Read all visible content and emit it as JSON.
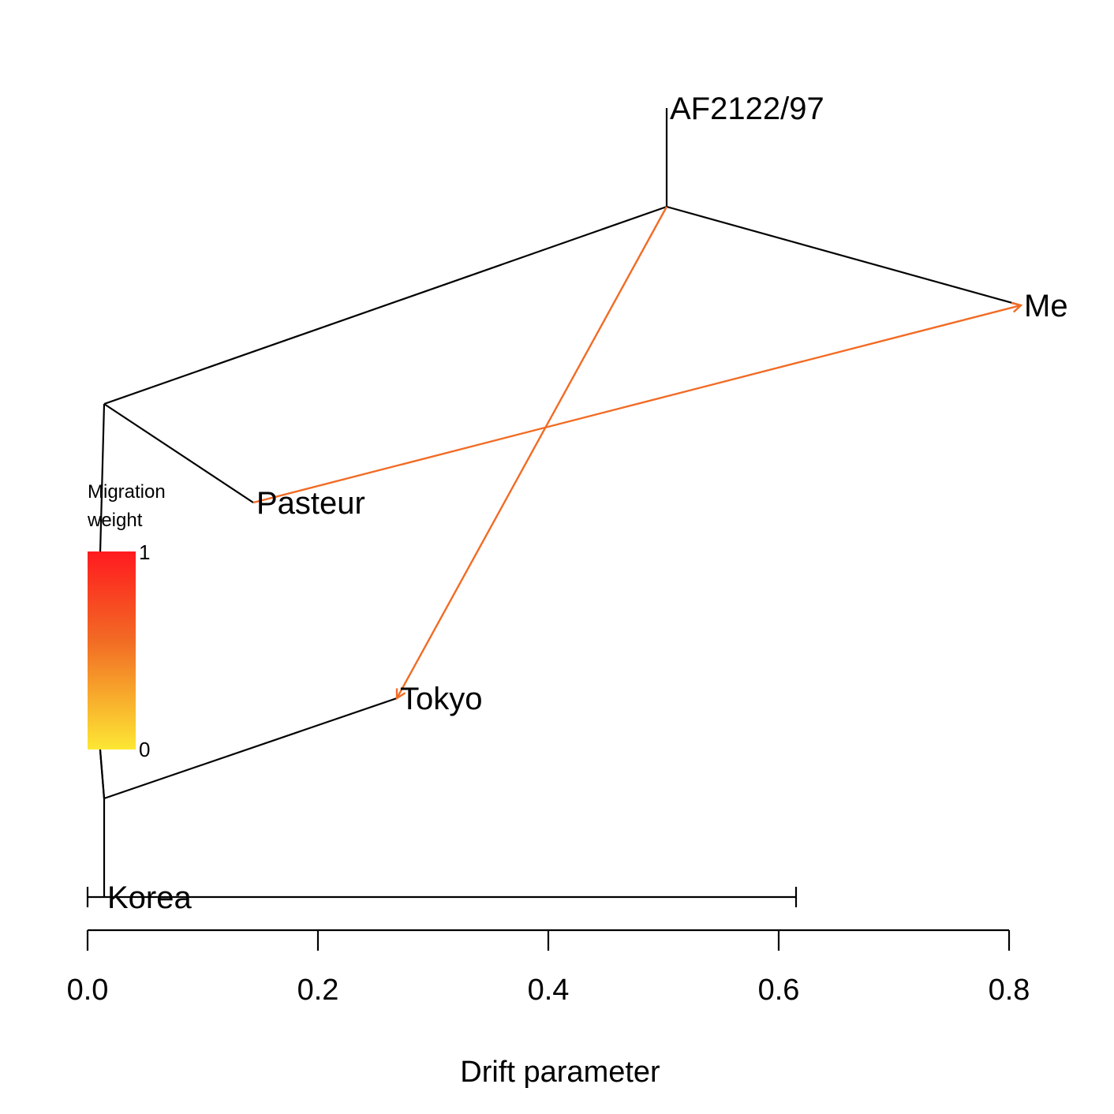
{
  "chart_data": {
    "type": "tree",
    "xlabel": "Drift parameter",
    "xlim": [
      0.0,
      0.8
    ],
    "x_ticks": [
      "0.0",
      "0.2",
      "0.4",
      "0.6",
      "0.8"
    ],
    "x_tick_values": [
      0.0,
      0.2,
      0.4,
      0.6,
      0.8
    ],
    "scale_bar": {
      "from": 0.0,
      "to": 0.615
    },
    "nodes": [
      {
        "id": "root",
        "x": 0.014,
        "y": 0.0
      },
      {
        "id": "n_korea_tokyo",
        "x": 0.014,
        "y": 1.0
      },
      {
        "id": "n_mid",
        "x": 0.004,
        "y": 2.0
      },
      {
        "id": "n_upper",
        "x": 0.014,
        "y": 5.0
      },
      {
        "id": "n_af_me",
        "x": 0.503,
        "y": 7.0
      },
      {
        "id": "Korea",
        "x": 0.014,
        "y": 0.0,
        "label": "Korea"
      },
      {
        "id": "Tokyo",
        "x": 0.267,
        "y": 1.0,
        "label": "Tokyo"
      },
      {
        "id": "Pasteur",
        "x": 0.142,
        "y": 4.0,
        "label": "Pasteur"
      },
      {
        "id": "Me",
        "x": 0.81,
        "y": 6.0,
        "label": "Me"
      },
      {
        "id": "AF2122/97",
        "x": 0.503,
        "y": 8.0,
        "label": "AF2122/97"
      }
    ],
    "edges": [
      [
        "n_korea_tokyo",
        "Korea"
      ],
      [
        "n_korea_tokyo",
        "Tokyo"
      ],
      [
        "n_mid",
        "n_korea_tokyo"
      ],
      [
        "n_mid",
        "n_upper"
      ],
      [
        "n_upper",
        "Pasteur"
      ],
      [
        "n_upper",
        "n_af_me"
      ],
      [
        "n_af_me",
        "AF2122/97"
      ],
      [
        "n_af_me",
        "Me"
      ]
    ],
    "migrations": [
      {
        "from": "Pasteur",
        "to": "Me",
        "weight": 0.6,
        "color": "#f26b24"
      },
      {
        "from": "n_af_me",
        "to": "Tokyo",
        "weight": 0.6,
        "color": "#f26b24"
      }
    ],
    "legend": {
      "title_line1": "Migration",
      "title_line2": "weight",
      "max_label": "1",
      "min_label": "0",
      "color_top": "#ff1a1f",
      "color_mid": "#f26b24",
      "color_bottom": "#fde734"
    }
  }
}
